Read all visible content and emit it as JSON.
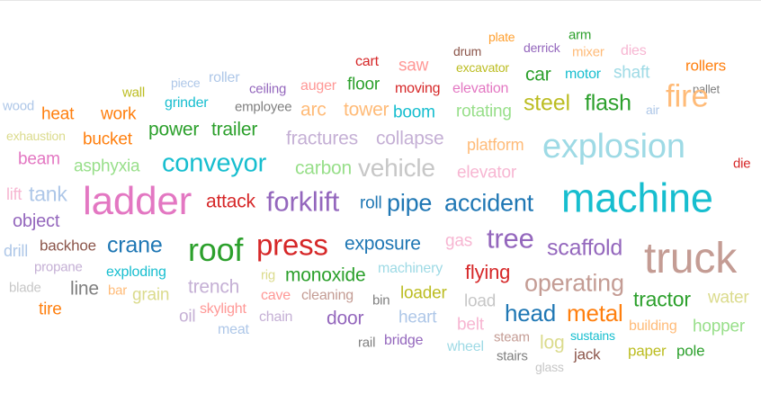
{
  "words": [
    {
      "text": "plate",
      "color": "#ff9f2e"
    },
    {
      "text": "arm",
      "color": "#2ca02c"
    },
    {
      "text": "derrick",
      "color": "#9467bd"
    },
    {
      "text": "drum",
      "color": "#8c564b"
    },
    {
      "text": "mixer",
      "color": "#ffbb78"
    },
    {
      "text": "dies",
      "color": "#f7b6d2"
    },
    {
      "text": "cart",
      "color": "#d62728"
    },
    {
      "text": "saw",
      "color": "#ff9896"
    },
    {
      "text": "excavator",
      "color": "#bcbd22"
    },
    {
      "text": "car",
      "color": "#2ca02c"
    },
    {
      "text": "motor",
      "color": "#17becf"
    },
    {
      "text": "shaft",
      "color": "#9edae5"
    },
    {
      "text": "rollers",
      "color": "#ff7f0e"
    },
    {
      "text": "piece",
      "color": "#aec7e8"
    },
    {
      "text": "roller",
      "color": "#aec7e8"
    },
    {
      "text": "ceiling",
      "color": "#9467bd"
    },
    {
      "text": "auger",
      "color": "#ff9896"
    },
    {
      "text": "floor",
      "color": "#2ca02c"
    },
    {
      "text": "moving",
      "color": "#d62728"
    },
    {
      "text": "elevation",
      "color": "#e377c2"
    },
    {
      "text": "pallet",
      "color": "#7f7f7f"
    },
    {
      "text": "wall",
      "color": "#bcbd22"
    },
    {
      "text": "fire",
      "color": "#ffbb78"
    },
    {
      "text": "grinder",
      "color": "#17becf"
    },
    {
      "text": "employee",
      "color": "#7f7f7f"
    },
    {
      "text": "steel",
      "color": "#bcbd22"
    },
    {
      "text": "flash",
      "color": "#2ca02c"
    },
    {
      "text": "wood",
      "color": "#aec7e8"
    },
    {
      "text": "heat",
      "color": "#ff7f0e"
    },
    {
      "text": "work",
      "color": "#ff7f0e"
    },
    {
      "text": "arc",
      "color": "#ffbb78"
    },
    {
      "text": "tower",
      "color": "#ffbb78"
    },
    {
      "text": "boom",
      "color": "#17becf"
    },
    {
      "text": "rotating",
      "color": "#98df8a"
    },
    {
      "text": "air",
      "color": "#aec7e8"
    },
    {
      "text": "power",
      "color": "#2ca02c"
    },
    {
      "text": "trailer",
      "color": "#2ca02c"
    },
    {
      "text": "exhaustion",
      "color": "#dbdb8d"
    },
    {
      "text": "bucket",
      "color": "#ff7f0e"
    },
    {
      "text": "fractures",
      "color": "#c5b0d5"
    },
    {
      "text": "collapse",
      "color": "#c5b0d5"
    },
    {
      "text": "platform",
      "color": "#ffbb78"
    },
    {
      "text": "explosion",
      "color": "#9edae5"
    },
    {
      "text": "beam",
      "color": "#e377c2"
    },
    {
      "text": "asphyxia",
      "color": "#98df8a"
    },
    {
      "text": "conveyor",
      "color": "#17becf"
    },
    {
      "text": "carbon",
      "color": "#98df8a"
    },
    {
      "text": "vehicle",
      "color": "#c7c7c7"
    },
    {
      "text": "elevator",
      "color": "#f7b6d2"
    },
    {
      "text": "die",
      "color": "#d62728"
    },
    {
      "text": "lift",
      "color": "#f7b6d2"
    },
    {
      "text": "tank",
      "color": "#aec7e8"
    },
    {
      "text": "ladder",
      "color": "#e377c2"
    },
    {
      "text": "attack",
      "color": "#d62728"
    },
    {
      "text": "forklift",
      "color": "#9467bd"
    },
    {
      "text": "roll",
      "color": "#1f77b4"
    },
    {
      "text": "pipe",
      "color": "#1f77b4"
    },
    {
      "text": "accident",
      "color": "#1f77b4"
    },
    {
      "text": "machine",
      "color": "#17becf"
    },
    {
      "text": "object",
      "color": "#9467bd"
    },
    {
      "text": "drill",
      "color": "#aec7e8"
    },
    {
      "text": "backhoe",
      "color": "#8c564b"
    },
    {
      "text": "crane",
      "color": "#1f77b4"
    },
    {
      "text": "roof",
      "color": "#2ca02c"
    },
    {
      "text": "press",
      "color": "#d62728"
    },
    {
      "text": "exposure",
      "color": "#1f77b4"
    },
    {
      "text": "gas",
      "color": "#f7b6d2"
    },
    {
      "text": "tree",
      "color": "#9467bd"
    },
    {
      "text": "scaffold",
      "color": "#9467bd"
    },
    {
      "text": "truck",
      "color": "#c49c94"
    },
    {
      "text": "propane",
      "color": "#c5b0d5"
    },
    {
      "text": "exploding",
      "color": "#17becf"
    },
    {
      "text": "rig",
      "color": "#dbdb8d"
    },
    {
      "text": "monoxide",
      "color": "#2ca02c"
    },
    {
      "text": "machinery",
      "color": "#9edae5"
    },
    {
      "text": "flying",
      "color": "#d62728"
    },
    {
      "text": "operating",
      "color": "#c49c94"
    },
    {
      "text": "blade",
      "color": "#c7c7c7"
    },
    {
      "text": "line",
      "color": "#7f7f7f"
    },
    {
      "text": "bar",
      "color": "#ffbb78"
    },
    {
      "text": "grain",
      "color": "#dbdb8d"
    },
    {
      "text": "trench",
      "color": "#c5b0d5"
    },
    {
      "text": "cave",
      "color": "#ff9896"
    },
    {
      "text": "cleaning",
      "color": "#c49c94"
    },
    {
      "text": "bin",
      "color": "#7f7f7f"
    },
    {
      "text": "loader",
      "color": "#bcbd22"
    },
    {
      "text": "load",
      "color": "#c7c7c7"
    },
    {
      "text": "tractor",
      "color": "#2ca02c"
    },
    {
      "text": "water",
      "color": "#dbdb8d"
    },
    {
      "text": "tire",
      "color": "#ff7f0e"
    },
    {
      "text": "oil",
      "color": "#c5b0d5"
    },
    {
      "text": "skylight",
      "color": "#ff9896"
    },
    {
      "text": "chain",
      "color": "#c5b0d5"
    },
    {
      "text": "door",
      "color": "#9467bd"
    },
    {
      "text": "heart",
      "color": "#aec7e8"
    },
    {
      "text": "head",
      "color": "#1f77b4"
    },
    {
      "text": "metal",
      "color": "#ff7f0e"
    },
    {
      "text": "meat",
      "color": "#aec7e8"
    },
    {
      "text": "belt",
      "color": "#f7b6d2"
    },
    {
      "text": "building",
      "color": "#ffbb78"
    },
    {
      "text": "hopper",
      "color": "#98df8a"
    },
    {
      "text": "sustains",
      "color": "#17becf"
    },
    {
      "text": "rail",
      "color": "#7f7f7f"
    },
    {
      "text": "bridge",
      "color": "#9467bd"
    },
    {
      "text": "steam",
      "color": "#c49c94"
    },
    {
      "text": "log",
      "color": "#dbdb8d"
    },
    {
      "text": "wheel",
      "color": "#9edae5"
    },
    {
      "text": "jack",
      "color": "#8c564b"
    },
    {
      "text": "paper",
      "color": "#bcbd22"
    },
    {
      "text": "pole",
      "color": "#2ca02c"
    },
    {
      "text": "stairs",
      "color": "#7f7f7f"
    },
    {
      "text": "glass",
      "color": "#c7c7c7"
    }
  ]
}
